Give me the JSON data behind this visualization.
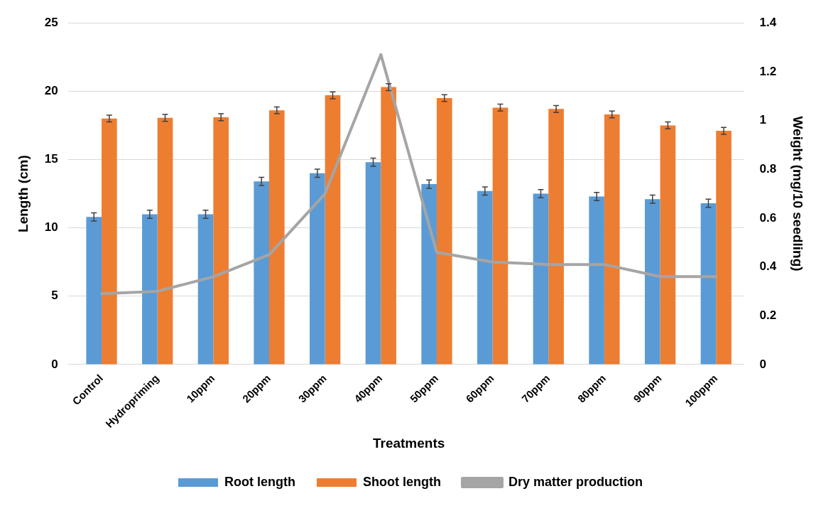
{
  "chart_data": {
    "type": "bar",
    "xlabel": "Treatments",
    "ylabel": "Length (cm)",
    "y2label": "Weight (mg/10 seedling)",
    "categories": [
      "Control",
      "Hydropriming",
      "10ppm",
      "20ppm",
      "30ppm",
      "40ppm",
      "50ppm",
      "60ppm",
      "70ppm",
      "80ppm",
      "90ppm",
      "100ppm"
    ],
    "series": [
      {
        "name": "Root length",
        "color": "#5b9bd5",
        "values": [
          10.8,
          11.0,
          11.0,
          13.4,
          14.0,
          14.8,
          13.2,
          12.7,
          12.5,
          12.3,
          12.1,
          11.8
        ],
        "errors": [
          0.3,
          0.3,
          0.3,
          0.3,
          0.3,
          0.3,
          0.3,
          0.3,
          0.3,
          0.3,
          0.3,
          0.3
        ]
      },
      {
        "name": "Shoot length",
        "color": "#ed7d31",
        "values": [
          18.0,
          18.05,
          18.1,
          18.6,
          19.7,
          20.3,
          19.5,
          18.8,
          18.7,
          18.3,
          17.5,
          17.1
        ],
        "errors": [
          0.25,
          0.25,
          0.25,
          0.25,
          0.25,
          0.25,
          0.25,
          0.25,
          0.25,
          0.25,
          0.25,
          0.25
        ]
      },
      {
        "name": "Dry matter production",
        "type": "line",
        "axis": "y2",
        "color": "#a5a5a5",
        "marker": "none",
        "values": [
          0.29,
          0.3,
          0.36,
          0.45,
          0.7,
          1.27,
          0.46,
          0.42,
          0.41,
          0.41,
          0.36,
          0.36
        ]
      }
    ],
    "ylim": [
      0,
      25
    ],
    "yticks": [
      0,
      5,
      10,
      15,
      20,
      25
    ],
    "y2lim": [
      0,
      1.4
    ],
    "y2ticks": [
      0,
      0.2,
      0.4,
      0.6,
      0.8,
      1,
      1.2,
      1.4
    ],
    "grid": "y",
    "legend": "bottom"
  }
}
